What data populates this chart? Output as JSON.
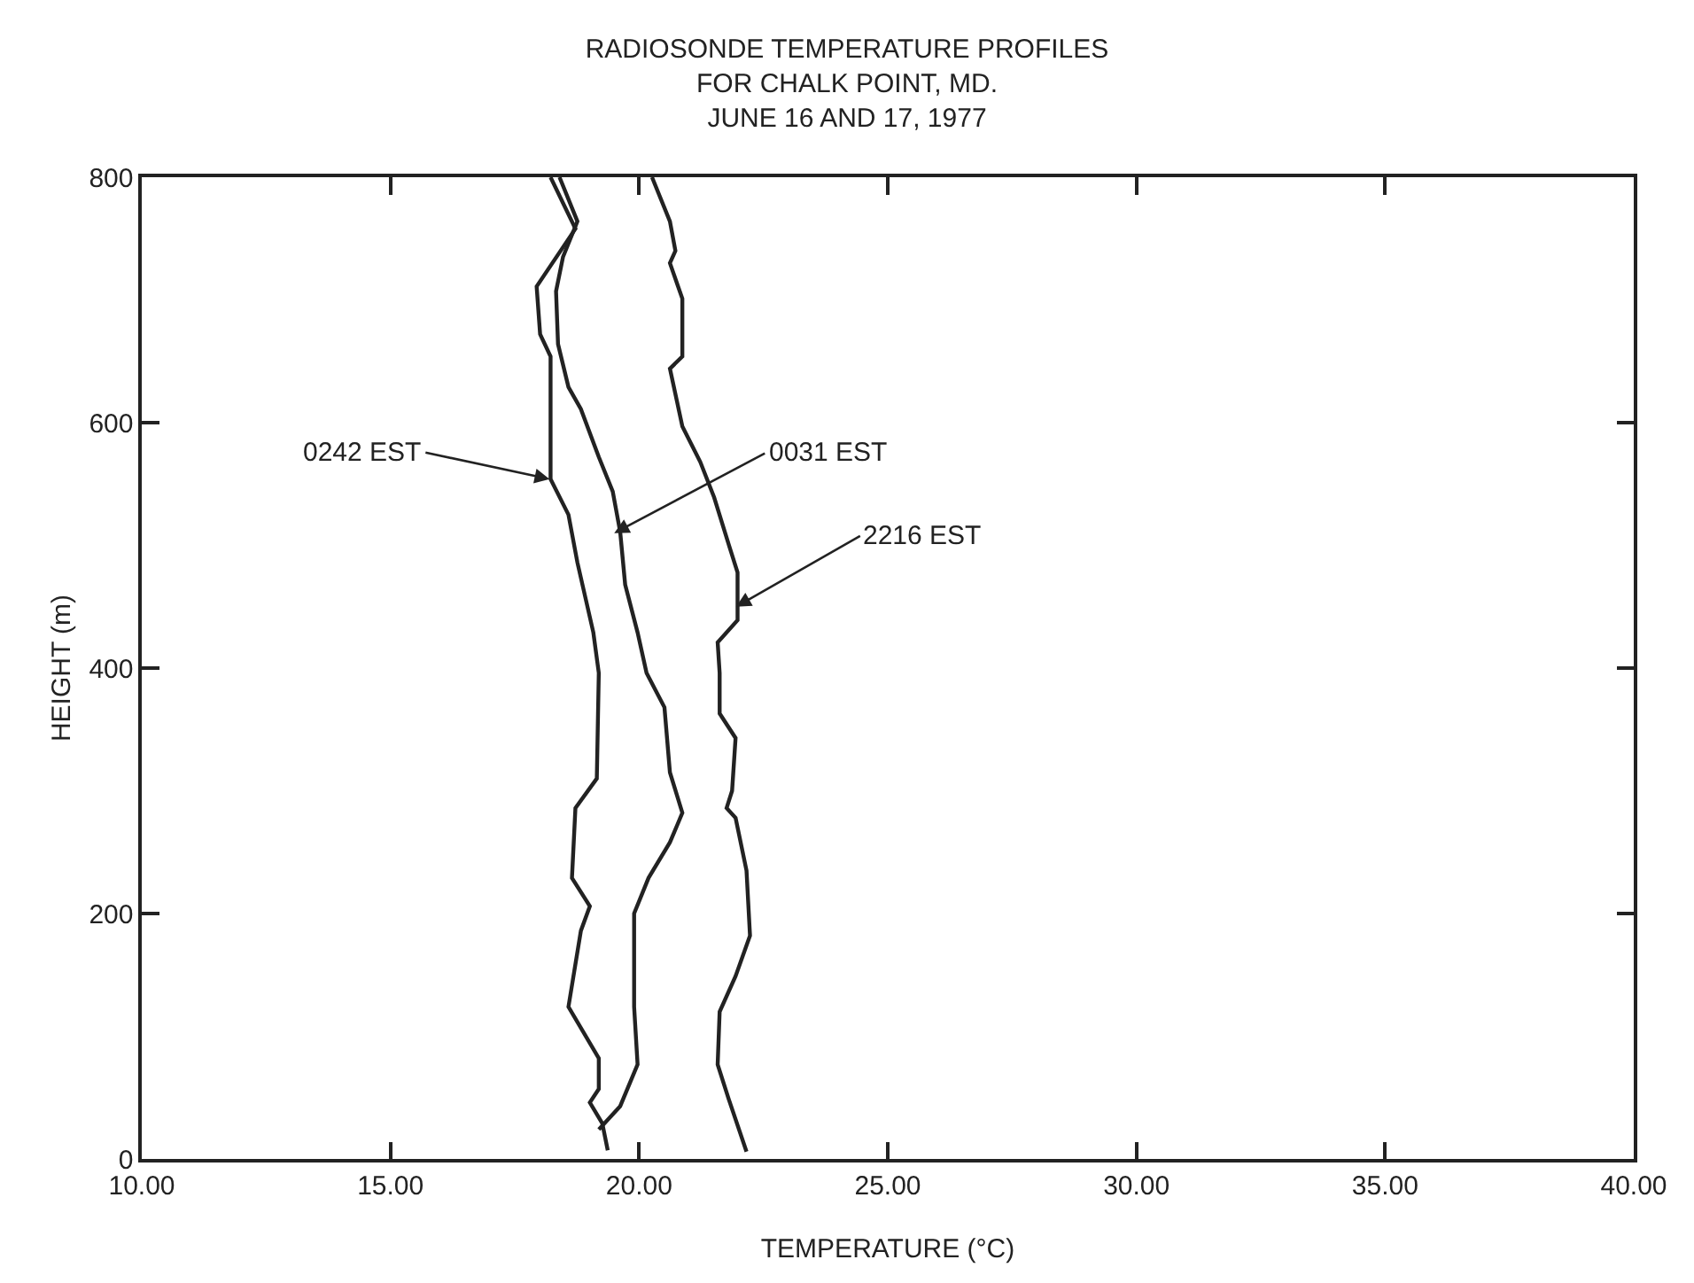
{
  "chart_data": {
    "type": "line",
    "title": "RADIOSONDE TEMPERATURE PROFILES\nFOR CHALK POINT, MD.\nJUNE 16 AND 17, 1977",
    "xlabel": "TEMPERATURE (°C)",
    "ylabel": "HEIGHT (m)",
    "xlim": [
      10,
      40
    ],
    "ylim": [
      0,
      800
    ],
    "xticks": [
      {
        "value": 10,
        "label": "10.00"
      },
      {
        "value": 15,
        "label": "15.00"
      },
      {
        "value": 20,
        "label": "20.00"
      },
      {
        "value": 25,
        "label": "25.00"
      },
      {
        "value": 30,
        "label": "30.00"
      },
      {
        "value": 35,
        "label": "35.00"
      },
      {
        "value": 40,
        "label": "40.00"
      }
    ],
    "yticks": [
      0,
      200,
      400,
      600,
      800
    ],
    "grid": false,
    "marker": "none",
    "line_style": "solid",
    "series": [
      {
        "color": "#222222",
        "x": [
          18.22,
          18.72,
          17.94,
          18.01,
          18.22,
          18.22,
          18.58,
          18.76,
          19.08,
          19.19,
          19.15,
          18.72,
          18.65,
          19.01,
          18.83,
          18.58,
          19.19,
          19.19,
          19.01,
          19.26,
          19.37
        ],
        "values": [
          800,
          758,
          711,
          672,
          654,
          554,
          525,
          486,
          429,
          396,
          310,
          286,
          229,
          206,
          186,
          124,
          82,
          57,
          46,
          29,
          7
        ]
      },
      {
        "color": "#222222",
        "x": [
          18.4,
          18.76,
          18.47,
          18.33,
          18.37,
          18.58,
          18.83,
          19.19,
          19.47,
          19.62,
          19.72,
          19.97,
          20.15,
          20.51,
          20.62,
          20.87,
          20.62,
          20.19,
          19.9,
          19.9,
          19.97,
          19.62,
          19.19
        ],
        "values": [
          800,
          764,
          735,
          707,
          664,
          629,
          611,
          572,
          544,
          511,
          468,
          429,
          396,
          368,
          315,
          282,
          258,
          229,
          200,
          124,
          77,
          43,
          24
        ]
      },
      {
        "color": "#222222",
        "x": [
          20.26,
          20.62,
          20.73,
          20.62,
          20.87,
          20.87,
          20.62,
          20.87,
          21.23,
          21.51,
          21.8,
          21.98,
          21.98,
          21.58,
          21.62,
          21.62,
          21.94,
          21.87,
          21.76,
          21.94,
          22.16,
          22.23,
          21.94,
          21.62,
          21.58,
          21.8,
          22.16
        ],
        "values": [
          800,
          764,
          740,
          730,
          701,
          654,
          644,
          597,
          568,
          539,
          501,
          478,
          439,
          421,
          396,
          363,
          343,
          300,
          286,
          278,
          235,
          182,
          149,
          120,
          77,
          49,
          6
        ]
      }
    ],
    "annotations": [
      {
        "text": "0242 EST",
        "x": 18.2,
        "y": 554
      },
      {
        "text": "0031 EST",
        "x": 19.5,
        "y": 510
      },
      {
        "text": "2216 EST",
        "x": 21.95,
        "y": 450
      }
    ]
  }
}
